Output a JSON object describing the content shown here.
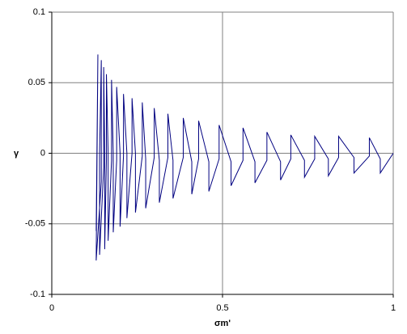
{
  "chart_data": {
    "type": "line",
    "y_label": "γ",
    "x_label": "σm'",
    "xlim": [
      0,
      1
    ],
    "ylim": [
      -0.1,
      0.1
    ],
    "xticks": [
      0,
      0.5,
      1
    ],
    "yticks": [
      -0.1,
      -0.05,
      0,
      0.05,
      0.1
    ],
    "grid": true,
    "series": [
      {
        "color": "#000080",
        "x": [
          1,
          0.962,
          0.962,
          0.93,
          0.93,
          0.885,
          0.885,
          0.84,
          0.84,
          0.81,
          0.81,
          0.77,
          0.77,
          0.74,
          0.74,
          0.7,
          0.7,
          0.67,
          0.67,
          0.63,
          0.63,
          0.595,
          0.595,
          0.56,
          0.56,
          0.525,
          0.525,
          0.49,
          0.49,
          0.46,
          0.46,
          0.43,
          0.43,
          0.41,
          0.41,
          0.385,
          0.385,
          0.355,
          0.355,
          0.34,
          0.34,
          0.315,
          0.315,
          0.3,
          0.3,
          0.275,
          0.275,
          0.265,
          0.265,
          0.245,
          0.245,
          0.235,
          0.235,
          0.22,
          0.22,
          0.21,
          0.21,
          0.2,
          0.2,
          0.19,
          0.19,
          0.18,
          0.18,
          0.175,
          0.175,
          0.165,
          0.165,
          0.16,
          0.16,
          0.155,
          0.155,
          0.152,
          0.152,
          0.14,
          0.14,
          0.145,
          0.145,
          0.13,
          0.135,
          0.13
        ],
        "values": [
          0,
          -0.014,
          -0.004,
          0.011,
          -0.002,
          -0.014,
          -0.003,
          0.012,
          -0.003,
          -0.016,
          -0.004,
          0.012,
          -0.004,
          -0.017,
          -0.005,
          0.013,
          -0.004,
          -0.019,
          -0.006,
          0.015,
          -0.005,
          -0.021,
          -0.006,
          0.018,
          -0.005,
          -0.023,
          -0.006,
          0.02,
          -0.004,
          -0.027,
          -0.006,
          0.023,
          -0.004,
          -0.029,
          -0.006,
          0.025,
          -0.003,
          -0.032,
          -0.005,
          0.028,
          -0.003,
          -0.035,
          -0.005,
          0.032,
          -0.003,
          -0.039,
          -0.004,
          0.036,
          -0.002,
          -0.042,
          0,
          0.039,
          0,
          -0.046,
          0,
          0.042,
          -0.002,
          -0.052,
          0,
          0.047,
          -0.005,
          -0.056,
          0,
          0.052,
          -0.005,
          -0.062,
          0,
          0.056,
          -0.005,
          -0.068,
          0,
          0.061,
          -0.01,
          -0.072,
          0,
          0.066,
          -0.02,
          -0.076,
          0.07,
          -0.055
        ]
      }
    ]
  }
}
